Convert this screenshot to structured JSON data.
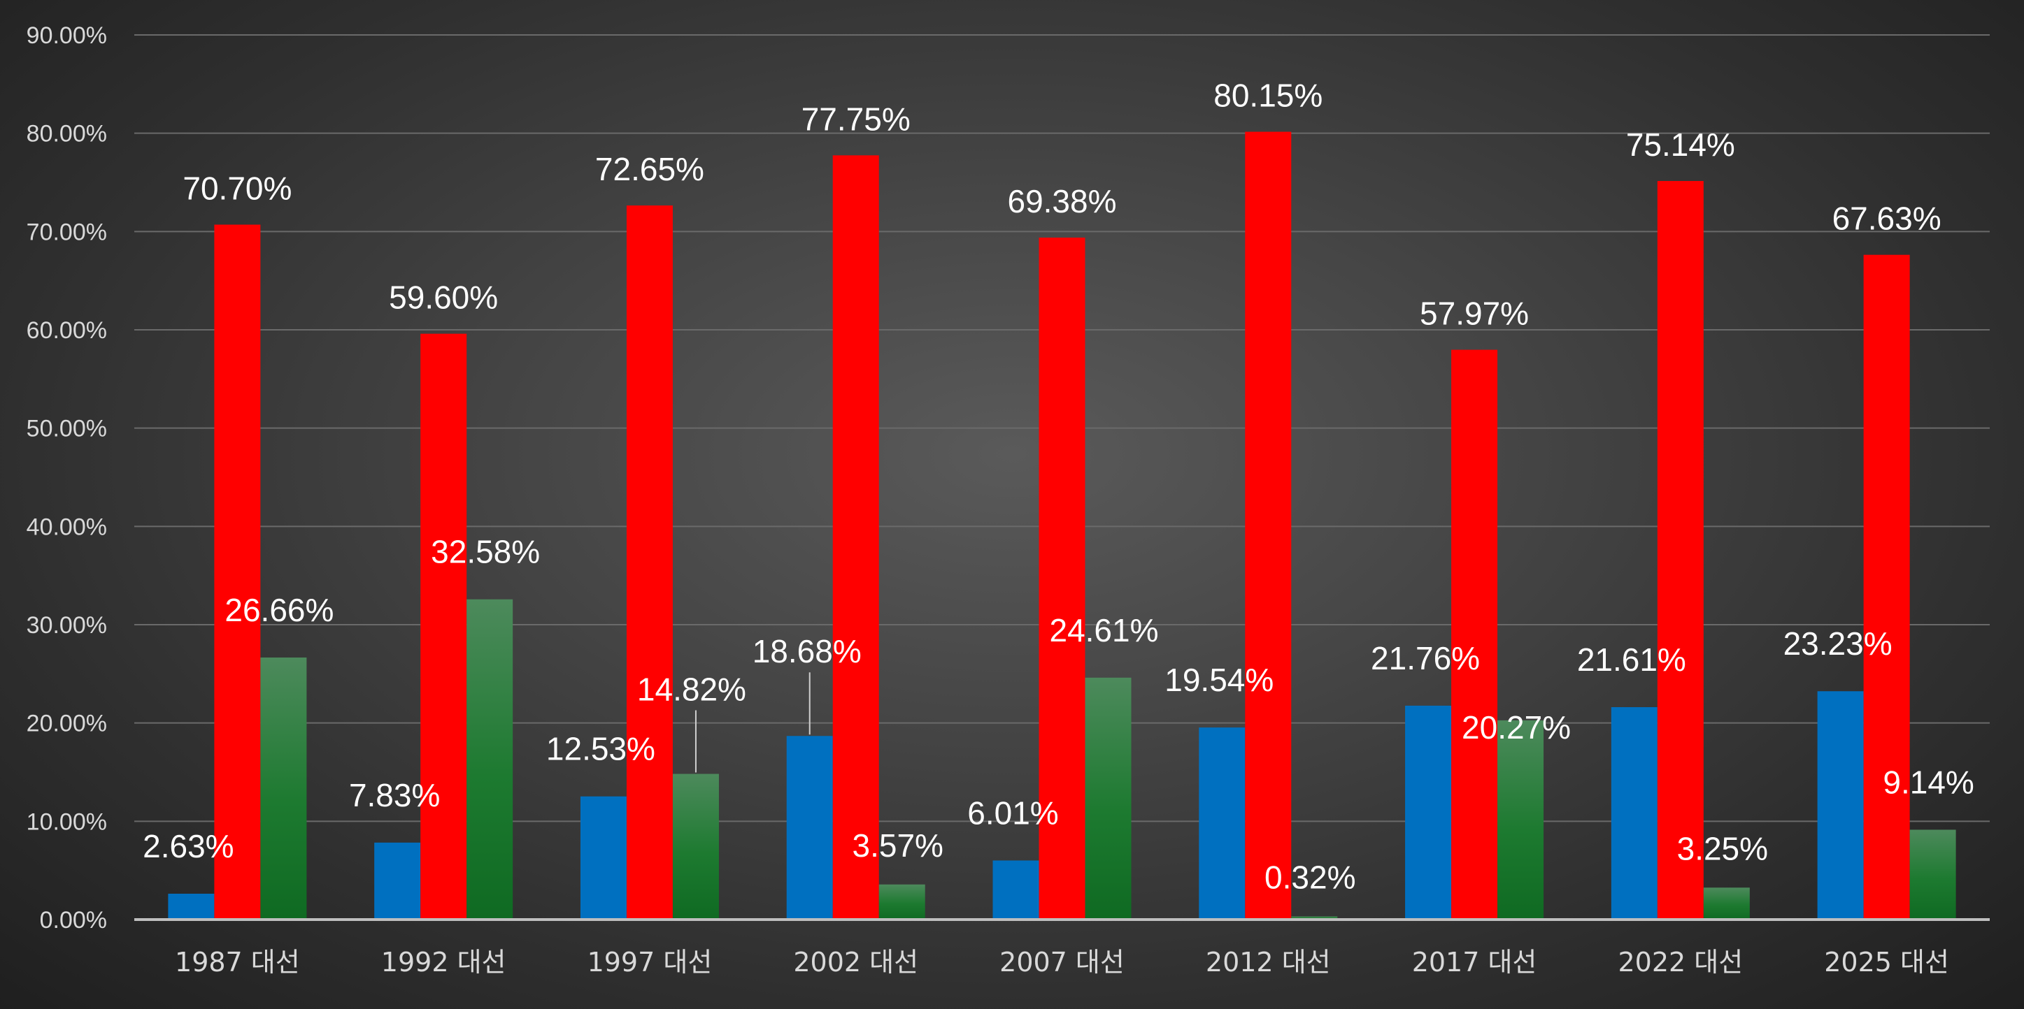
{
  "chart_data": {
    "type": "bar",
    "title": "",
    "xlabel": "",
    "ylabel": "",
    "ylim": [
      0,
      90
    ],
    "yticks": [
      "0.00%",
      "10.00%",
      "20.00%",
      "30.00%",
      "40.00%",
      "50.00%",
      "60.00%",
      "70.00%",
      "80.00%",
      "90.00%"
    ],
    "grid": true,
    "legend": "none",
    "categories": [
      "1987 대선",
      "1992 대선",
      "1997 대선",
      "2002 대선",
      "2007 대선",
      "2012 대선",
      "2017 대선",
      "2022 대선",
      "2025 대선"
    ],
    "series": [
      {
        "color": "#0070c0",
        "values": [
          2.63,
          7.83,
          12.53,
          18.68,
          6.01,
          19.54,
          21.76,
          21.61,
          23.23
        ],
        "labels": [
          "2.63%",
          "7.83%",
          "12.53%",
          "18.68%",
          "6.01%",
          "19.54%",
          "21.76%",
          "21.61%",
          "23.23%"
        ]
      },
      {
        "color": "#ff0000",
        "values": [
          70.7,
          59.6,
          72.65,
          77.75,
          69.38,
          80.15,
          57.97,
          75.14,
          67.63
        ],
        "labels": [
          "70.70%",
          "59.60%",
          "72.65%",
          "77.75%",
          "69.38%",
          "80.15%",
          "57.97%",
          "75.14%",
          "67.63%"
        ]
      },
      {
        "color": "#1a7a2a",
        "values": [
          26.66,
          32.58,
          14.82,
          3.57,
          24.61,
          0.32,
          20.27,
          3.25,
          9.14
        ],
        "labels": [
          "26.66%",
          "32.58%",
          "14.82%",
          "3.57%",
          "24.61%",
          "0.32%",
          "20.27%",
          "3.25%",
          "9.14%"
        ]
      }
    ]
  }
}
